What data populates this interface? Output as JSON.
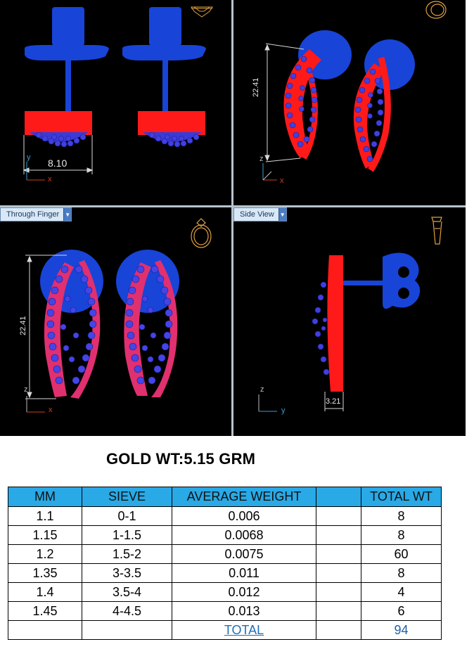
{
  "viewports": {
    "top_left": {
      "dimension": "8.10",
      "axis_v": "y",
      "axis_h": "x"
    },
    "top_right": {
      "dimension": "22.41",
      "axis_v": "z",
      "axis_h": "x"
    },
    "bottom_left": {
      "label": "Through Finger",
      "dimension": "22.41",
      "axis_v": "z",
      "axis_h": "x"
    },
    "bottom_right": {
      "label": "Side View",
      "dimension": "3.21",
      "axis_v": "z",
      "axis_h": "y"
    }
  },
  "gold_weight": "GOLD WT:5.15 GRM",
  "table": {
    "headers": [
      "MM",
      "SIEVE",
      "AVERAGE WEIGHT",
      "",
      "TOTAL WT"
    ],
    "rows": [
      [
        "1.1",
        "0-1",
        "0.006",
        "",
        "8"
      ],
      [
        "1.15",
        "1-1.5",
        "0.0068",
        "",
        "8"
      ],
      [
        "1.2",
        "1.5-2",
        "0.0075",
        "",
        "60"
      ],
      [
        "1.35",
        "3-3.5",
        "0.011",
        "",
        "8"
      ],
      [
        "1.4",
        "3.5-4",
        "0.012",
        "",
        "4"
      ],
      [
        "1.45",
        "4-4.5",
        "0.013",
        "",
        "6"
      ]
    ],
    "total_label": "TOTAL",
    "total_value": "94"
  },
  "colors": {
    "metal": "#1844d8",
    "seat": "#ff1a1a",
    "stone": "#3a3ad8",
    "header_bg": "#29a9e6",
    "axis_x": "#d04020",
    "axis_yz": "#3aa0d0"
  },
  "icons": [
    "diamond-icon",
    "ring-icon",
    "ring-front-icon",
    "ring-side-icon"
  ]
}
